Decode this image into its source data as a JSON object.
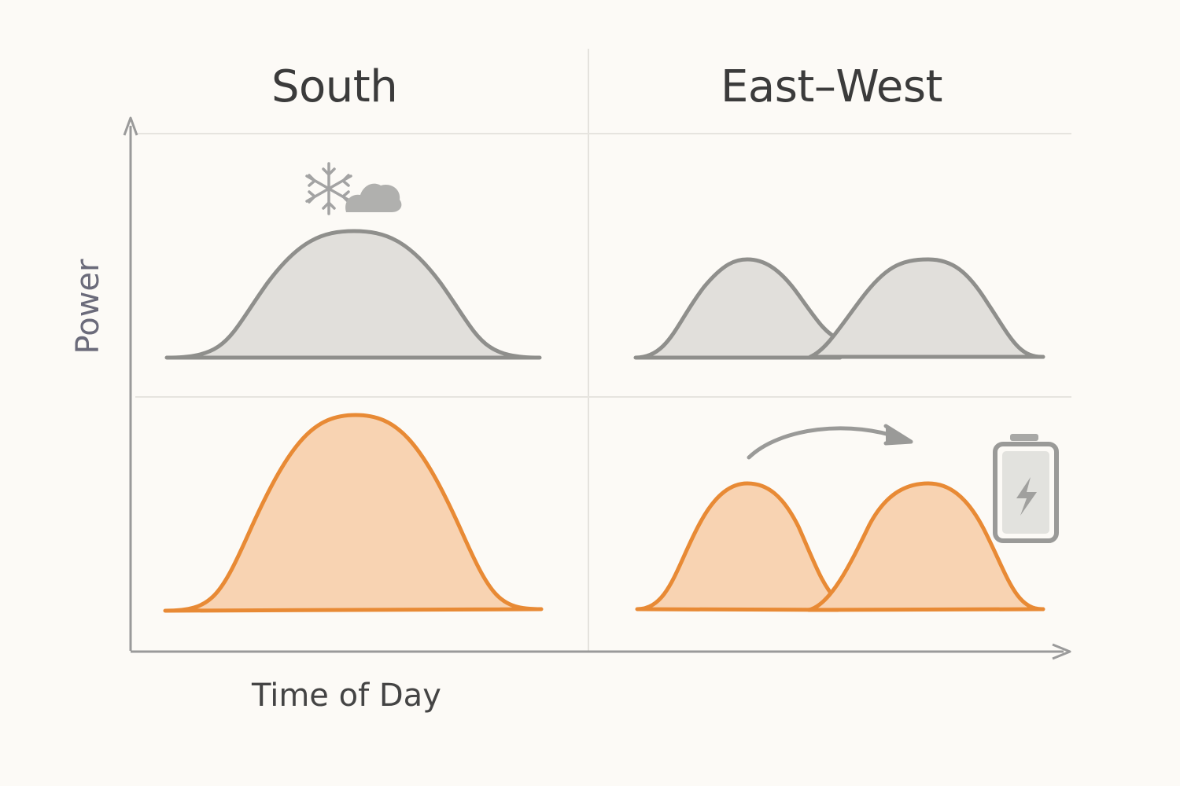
{
  "panels": {
    "left_title": "South",
    "right_title": "East–West"
  },
  "axes": {
    "x_label": "Time of Day",
    "y_label": "Power"
  },
  "icons": {
    "weather": "snowflake-icon",
    "cloud": "cloud-icon",
    "shift": "curved-arrow-icon",
    "storage": "battery-icon"
  },
  "colors": {
    "background": "#fcfaf6",
    "gray_fill": "#e1dfdb",
    "gray_stroke": "#8f8f8c",
    "orange_fill": "#f8d3b2",
    "orange_stroke": "#e88a35",
    "axis": "#9a9a9a"
  }
}
